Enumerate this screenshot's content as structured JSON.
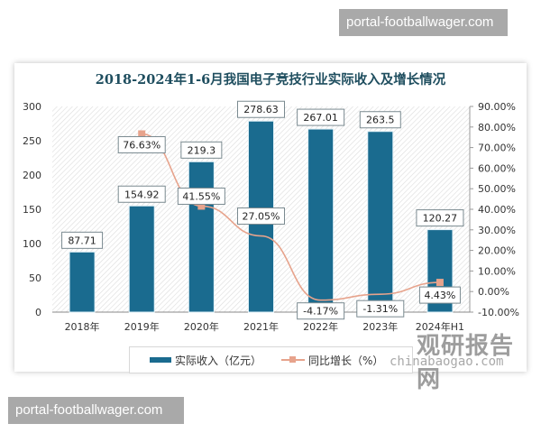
{
  "watermarks": {
    "top": "portal-footballwager.com",
    "bottom": "portal-footballwager.com"
  },
  "brand": {
    "cn": "观研报告网",
    "en": "chinabaogao.com"
  },
  "colors": {
    "bar": "#1a6b8f",
    "line": "#e7a38c",
    "title": "#1f4e5f"
  },
  "chart_data": {
    "type": "bar",
    "title": "2018-2024年1-6月我国电子竞技行业实际收入及增长情况",
    "categories": [
      "2018年",
      "2019年",
      "2020年",
      "2021年",
      "2022年",
      "2023年",
      "2024年H1"
    ],
    "series": [
      {
        "name": "实际收入（亿元）",
        "type": "bar",
        "axis": "left",
        "values": [
          87.71,
          154.92,
          219.3,
          278.63,
          267.01,
          263.5,
          120.27
        ],
        "labels": [
          "87.71",
          "154.92",
          "219.3",
          "278.63",
          "267.01",
          "263.5",
          "120.27"
        ]
      },
      {
        "name": "同比增长（%）",
        "type": "line",
        "axis": "right",
        "values": [
          null,
          76.63,
          41.55,
          27.05,
          -4.17,
          -1.31,
          4.43
        ],
        "labels": [
          "",
          "76.63%",
          "41.55%",
          "27.05%",
          "-4.17%",
          "-1.31%",
          "4.43%"
        ]
      }
    ],
    "left_axis": {
      "ylim": [
        0,
        300
      ],
      "ticks": [
        "0",
        "50",
        "100",
        "150",
        "200",
        "250",
        "300"
      ]
    },
    "right_axis": {
      "ylim": [
        -10,
        90
      ],
      "ticks": [
        "-10.00%",
        "0.00%",
        "10.00%",
        "20.00%",
        "30.00%",
        "40.00%",
        "50.00%",
        "60.00%",
        "70.00%",
        "80.00%",
        "90.00%"
      ]
    },
    "legend": [
      "实际收入（亿元）",
      "同比增长（%）"
    ],
    "legend_position": "bottom",
    "grid": false
  }
}
